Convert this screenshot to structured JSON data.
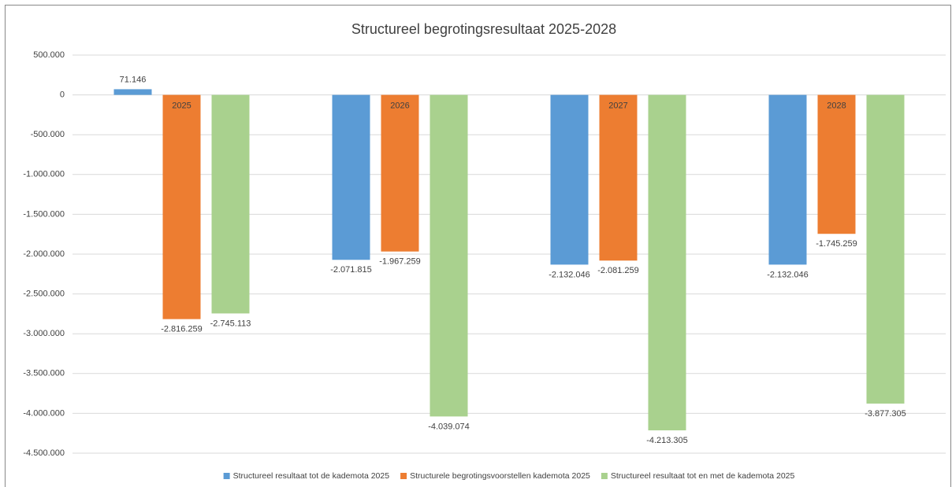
{
  "chart_data": {
    "type": "bar",
    "title": "Structureel begrotingsresultaat 2025-2028",
    "categories": [
      "2025",
      "2026",
      "2027",
      "2028"
    ],
    "series": [
      {
        "name": "Structureel resultaat tot de kademota 2025",
        "color": "#5b9bd5",
        "values": [
          71146,
          -2071815,
          -2132046,
          -2132046
        ],
        "value_labels": [
          "71.146",
          "-2.071.815",
          "-2.132.046",
          "-2.132.046"
        ]
      },
      {
        "name": "Structurele begrotingsvoorstellen kademota 2025",
        "color": "#ed7d31",
        "values": [
          -2816259,
          -1967259,
          -2081259,
          -1745259
        ],
        "value_labels": [
          "-2.816.259",
          "-1.967.259",
          "-2.081.259",
          "-1.745.259"
        ]
      },
      {
        "name": "Structureel resultaat tot en met de kademota 2025",
        "color": "#a9d18e",
        "values": [
          -2745113,
          -4039074,
          -4213305,
          -3877305
        ],
        "value_labels": [
          "-2.745.113",
          "-4.039.074",
          "-4.213.305",
          "-3.877.305"
        ]
      }
    ],
    "ylim": [
      -4500000,
      500000
    ],
    "yticks": [
      {
        "value": 500000,
        "label": "500.000"
      },
      0,
      {
        "value": -500000,
        "label": "-500.000"
      },
      {
        "value": -1000000,
        "label": "-1.000.000"
      },
      {
        "value": -1500000,
        "label": "-1.500.000"
      },
      {
        "value": -2000000,
        "label": "-2.000.000"
      },
      {
        "value": -2500000,
        "label": "-2.500.000"
      },
      {
        "value": -3000000,
        "label": "-3.000.000"
      },
      {
        "value": -3500000,
        "label": "-3.500.000"
      },
      {
        "value": -4000000,
        "label": "-4.000.000"
      },
      {
        "value": -4500000,
        "label": "-4.500.000"
      }
    ],
    "grid": true,
    "legend": "bottom"
  }
}
